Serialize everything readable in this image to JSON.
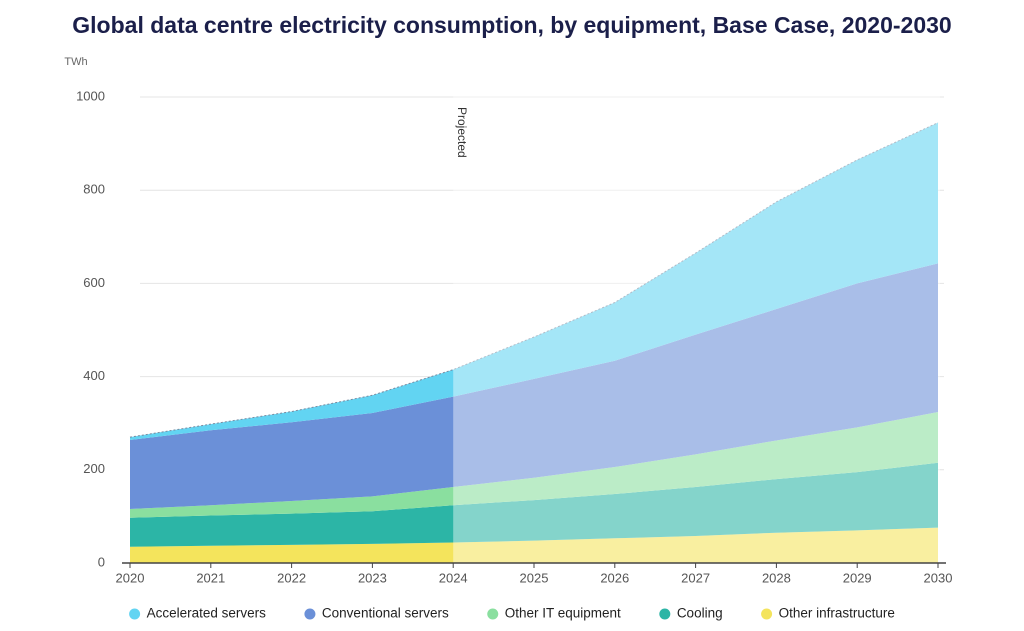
{
  "chart_data": {
    "type": "stacked-area",
    "title": "Global data centre electricity consumption, by equipment, Base Case, 2020-2030",
    "y_label": "TWh",
    "categories": [
      "2020",
      "2021",
      "2022",
      "2023",
      "2024",
      "2025",
      "2026",
      "2027",
      "2028",
      "2029",
      "2030"
    ],
    "ylim": [
      0,
      1000
    ],
    "yticks": [
      0,
      200,
      400,
      600,
      800,
      1000
    ],
    "grid": true,
    "annotation": {
      "label": "Projected",
      "x": "2024"
    },
    "series": [
      {
        "name": "Other infrastructure",
        "color": "#f4e45c",
        "values": [
          35,
          37,
          39,
          41,
          44,
          48,
          53,
          58,
          65,
          70,
          76
        ]
      },
      {
        "name": "Cooling",
        "color": "#2cb5a6",
        "values": [
          62,
          65,
          67,
          70,
          80,
          87,
          95,
          105,
          115,
          125,
          139
        ]
      },
      {
        "name": "Other IT equipment",
        "color": "#8adf9f",
        "values": [
          19,
          22,
          27,
          32,
          39,
          48,
          58,
          70,
          83,
          96,
          109
        ]
      },
      {
        "name": "Conventional servers",
        "color": "#6b90d8",
        "values": [
          148,
          161,
          169,
          179,
          194,
          212,
          228,
          257,
          282,
          309,
          319
        ]
      },
      {
        "name": "Accelerated servers",
        "color": "#62d4f2",
        "values": [
          6,
          13,
          23,
          38,
          58,
          90,
          125,
          175,
          230,
          265,
          302
        ]
      }
    ]
  }
}
